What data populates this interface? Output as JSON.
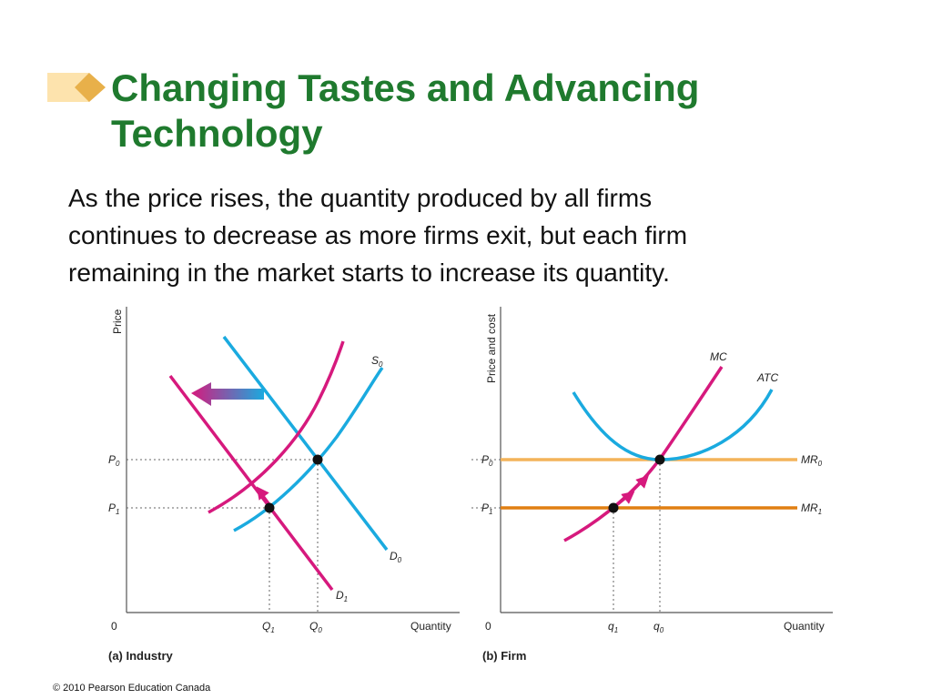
{
  "slide": {
    "title_lines": [
      "Changing Tastes and Advancing",
      "Technology"
    ],
    "body_lines": [
      "As the price rises, the quantity produced by all firms",
      "continues to decrease as more firms exit, but each firm",
      "remaining in the market starts to increase its quantity."
    ],
    "footer": "© 2010 Pearson Education Canada"
  },
  "colors": {
    "title": "#1f7a2e",
    "cyan": "#1aaadf",
    "magenta": "#d6197d",
    "orange_light": "#f3b35a",
    "orange_dark": "#e07f12",
    "bullet": "#f0c060"
  },
  "industry": {
    "y_axis_label": "Price",
    "x_axis_label": "Quantity",
    "origin": "0",
    "p0": {
      "main": "P",
      "sub": "0"
    },
    "p1": {
      "main": "P",
      "sub": "1"
    },
    "q0": {
      "main": "Q",
      "sub": "0"
    },
    "q1": {
      "main": "Q",
      "sub": "1"
    },
    "s0": {
      "main": "S",
      "sub": "0"
    },
    "d0": {
      "main": "D",
      "sub": "0"
    },
    "d1": {
      "main": "D",
      "sub": "1"
    },
    "panel_label": "(a) Industry"
  },
  "firm": {
    "y_axis_label": "Price and cost",
    "x_axis_label": "Quantity",
    "origin": "0",
    "p0": {
      "main": "P",
      "sub": "0"
    },
    "p1": {
      "main": "P",
      "sub": "1"
    },
    "q0": {
      "main": "q",
      "sub": "0"
    },
    "q1": {
      "main": "q",
      "sub": "1"
    },
    "mc": "MC",
    "atc": "ATC",
    "mr0": {
      "main": "MR",
      "sub": "0"
    },
    "mr1": {
      "main": "MR",
      "sub": "1"
    },
    "panel_label": "(b) Firm"
  }
}
